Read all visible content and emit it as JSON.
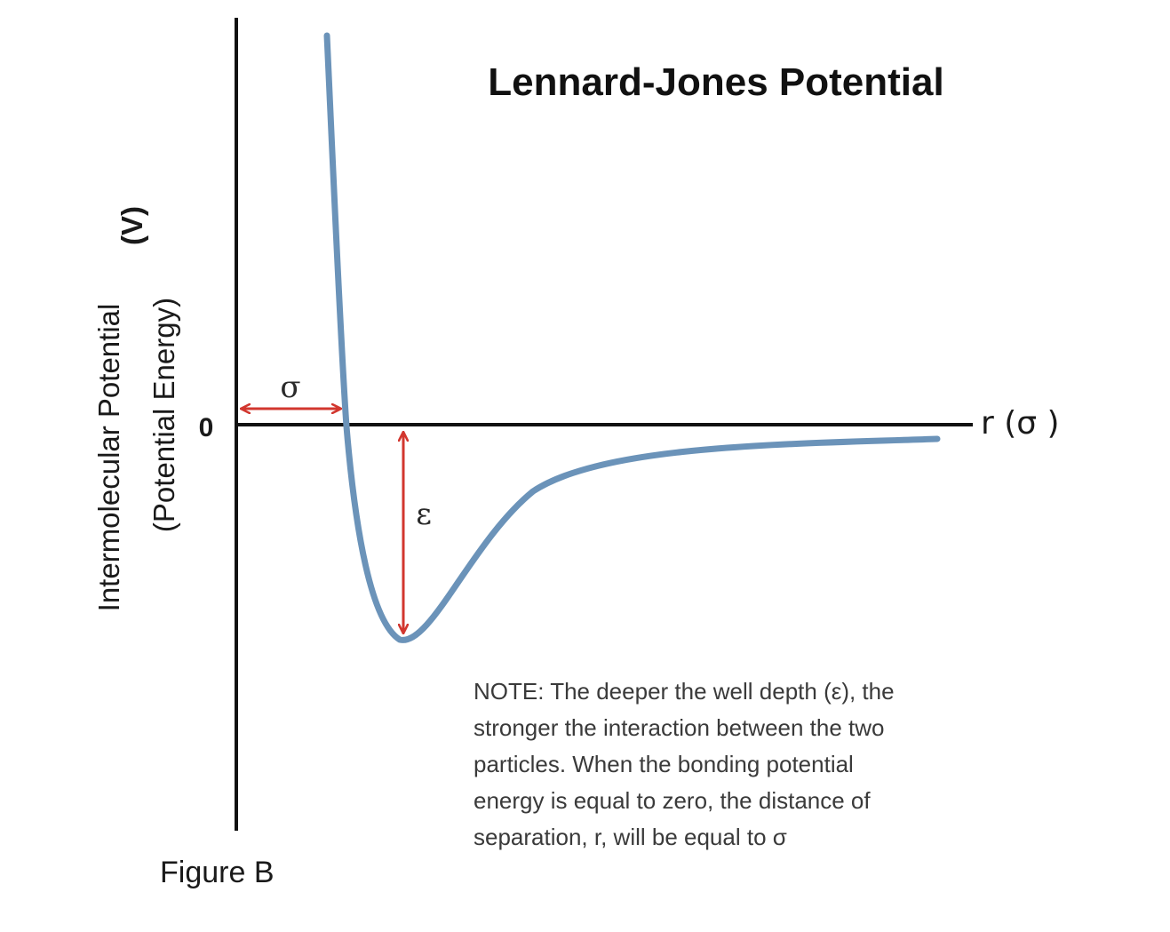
{
  "title": "Lennard-Jones Potential",
  "y_axis": {
    "label_line1": "Intermolecular Potential",
    "label_line2": "(Potential Energy)",
    "label_symbol": "(V)",
    "zero_tick": "0"
  },
  "x_axis": {
    "label": "r (σ )"
  },
  "annotations": {
    "sigma": "σ",
    "epsilon": "ε"
  },
  "note": {
    "lines": [
      "NOTE: The deeper the well depth (ε), the",
      "stronger the interaction between the two",
      "particles.  When the bonding potential",
      "energy is equal to zero, the distance of",
      "separation, r, will be equal to σ"
    ]
  },
  "figure_label": "Figure B",
  "colors": {
    "curve": "#6b93b9",
    "arrows": "#d2372f",
    "axes": "#111111"
  }
}
